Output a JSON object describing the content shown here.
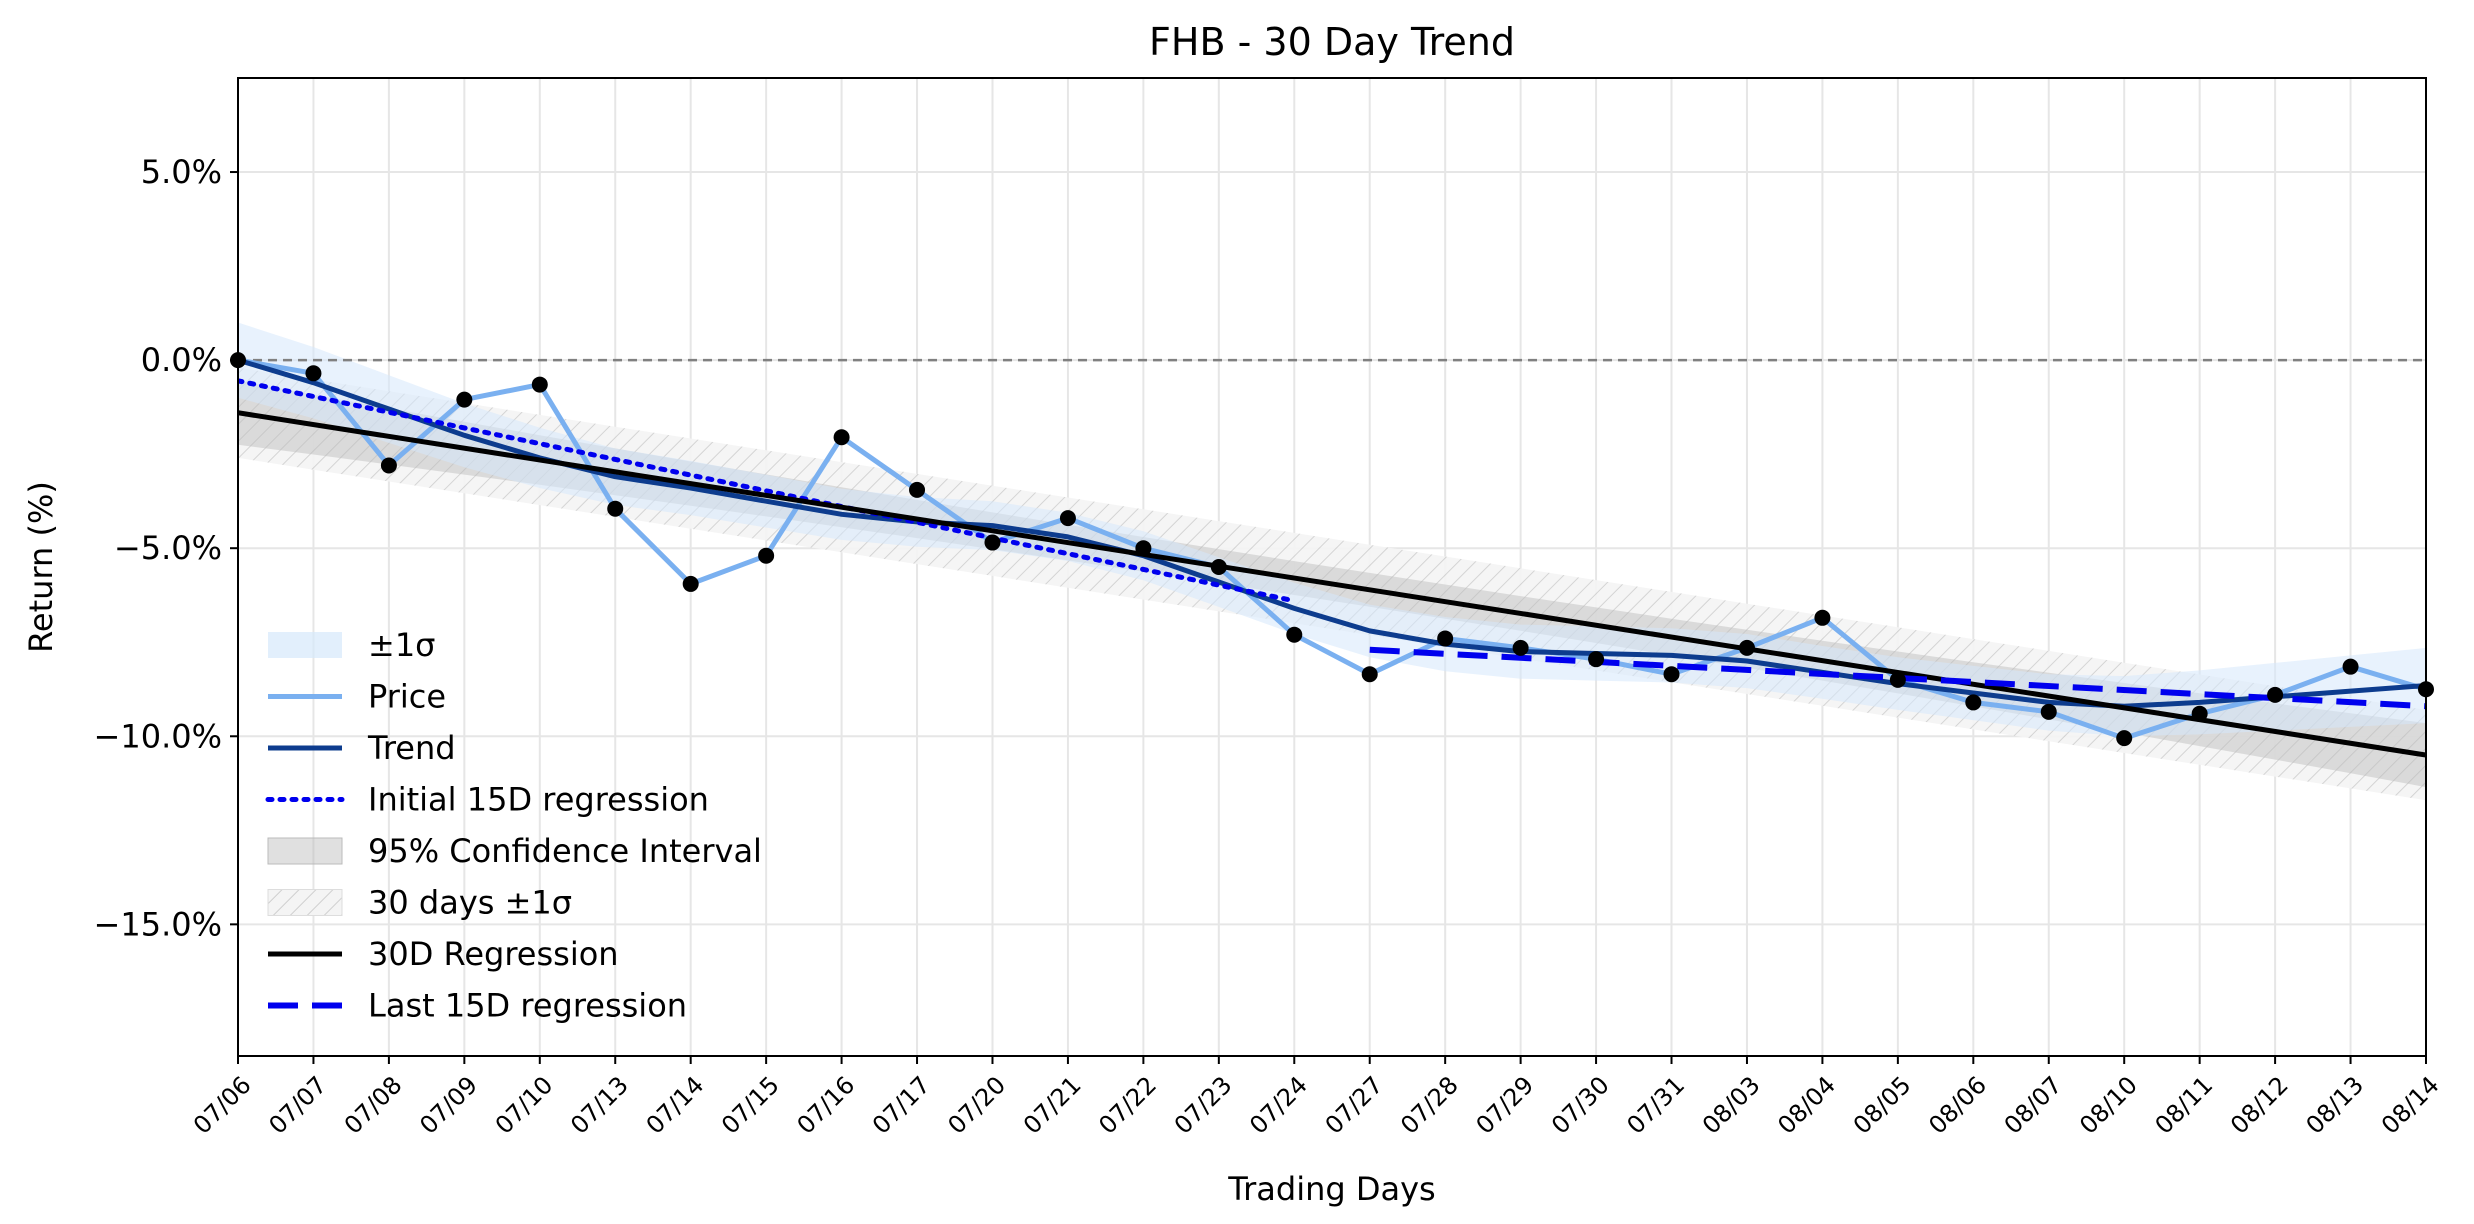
{
  "chart_data": {
    "type": "line",
    "title": "FHB - 30 Day Trend",
    "xlabel": "Trading Days",
    "ylabel": "Return (%)",
    "ylim": [
      -18.5,
      7.5
    ],
    "yticks": [
      5,
      0,
      -5,
      -10,
      -15
    ],
    "ytick_labels": [
      "5.0%",
      "0.0%",
      "−5.0%",
      "−10.0%",
      "−15.0%"
    ],
    "categories": [
      "07/06",
      "07/07",
      "07/08",
      "07/09",
      "07/10",
      "07/13",
      "07/14",
      "07/15",
      "07/16",
      "07/17",
      "07/20",
      "07/21",
      "07/22",
      "07/23",
      "07/24",
      "07/27",
      "07/28",
      "07/29",
      "07/30",
      "07/31",
      "08/03",
      "08/04",
      "08/05",
      "08/06",
      "08/07",
      "08/10",
      "08/11",
      "08/12",
      "08/13",
      "08/14"
    ],
    "grid": true,
    "legend_position": "lower-left",
    "reference_line": 0,
    "series": [
      {
        "name": "Price",
        "values": [
          0.0,
          -0.35,
          -2.8,
          -1.05,
          -0.65,
          -3.95,
          -5.95,
          -5.2,
          -2.05,
          -3.45,
          -4.85,
          -4.2,
          -5.0,
          -5.5,
          -7.3,
          -8.35,
          -7.4,
          -7.65,
          -7.95,
          -8.35,
          -7.65,
          -6.85,
          -8.5,
          -9.1,
          -9.35,
          -10.05,
          -9.4,
          -8.9,
          -8.15,
          -8.75
        ],
        "color": "#7ab0f0"
      },
      {
        "name": "Trend",
        "values": [
          0.0,
          -0.6,
          -1.3,
          -2.0,
          -2.6,
          -3.1,
          -3.4,
          -3.75,
          -4.1,
          -4.3,
          -4.4,
          -4.7,
          -5.2,
          -5.9,
          -6.6,
          -7.2,
          -7.55,
          -7.75,
          -7.8,
          -7.85,
          -8.0,
          -8.3,
          -8.6,
          -8.85,
          -9.1,
          -9.2,
          -9.1,
          -8.95,
          -8.8,
          -8.65
        ],
        "color": "#0d3c8e"
      },
      {
        "name": "Initial 15D regression",
        "x_range": [
          0,
          14
        ],
        "y_start": -0.55,
        "y_end": -6.4,
        "color": "#0000ee"
      },
      {
        "name": "30D Regression",
        "x_range": [
          0,
          29
        ],
        "y_start": -1.4,
        "y_end": -10.5,
        "color": "#000000"
      },
      {
        "name": "Last 15D regression",
        "x_range": [
          15,
          29
        ],
        "y_start": -7.7,
        "y_end": -9.2,
        "color": "#0000ee"
      }
    ],
    "bands": [
      {
        "name": "±1σ",
        "around": "Trend",
        "halfwidth": [
          1.0,
          0.95,
          0.9,
          0.85,
          0.8,
          0.75,
          0.72,
          0.7,
          0.68,
          0.66,
          0.65,
          0.64,
          0.65,
          0.66,
          0.68,
          0.7,
          0.72,
          0.72,
          0.72,
          0.72,
          0.72,
          0.7,
          0.7,
          0.72,
          0.75,
          0.8,
          0.85,
          0.9,
          0.95,
          1.0
        ],
        "color": "#d6e8fb"
      },
      {
        "name": "95% Confidence Interval",
        "around": "30D Regression",
        "halfwidth_start": 0.85,
        "halfwidth_mid": 0.45,
        "halfwidth_end": 0.85,
        "color": "#bbbbbb"
      },
      {
        "name": "30 days ±1σ",
        "around": "30D Regression",
        "halfwidth": 1.2,
        "color": "#cccccc"
      }
    ],
    "legend": [
      {
        "label": "±1σ",
        "style": "band-blue"
      },
      {
        "label": "Price",
        "style": "line-price"
      },
      {
        "label": "Trend",
        "style": "line-trend"
      },
      {
        "label": "Initial 15D regression",
        "style": "line-dotted"
      },
      {
        "label": "95% Confidence Interval",
        "style": "band-gray"
      },
      {
        "label": "30 days ±1σ",
        "style": "band-hatch"
      },
      {
        "label": "30D Regression",
        "style": "line-black"
      },
      {
        "label": "Last 15D regression",
        "style": "line-dashed"
      }
    ]
  }
}
